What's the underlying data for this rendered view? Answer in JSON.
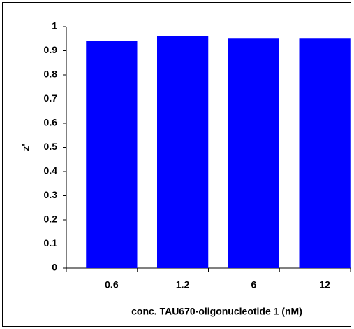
{
  "chart_data": {
    "type": "bar",
    "categories": [
      "0.6",
      "1.2",
      "6",
      "12"
    ],
    "values": [
      0.94,
      0.96,
      0.95,
      0.95
    ],
    "color": "#0000ff",
    "xlabel": "conc. TAU670-oligonucleotide 1 (nM)",
    "ylabel": "z'",
    "ylim": [
      0,
      1
    ],
    "yticks": [
      0,
      0.1,
      0.2,
      0.3,
      0.4,
      0.5,
      0.6,
      0.7,
      0.8,
      0.9,
      1
    ]
  }
}
